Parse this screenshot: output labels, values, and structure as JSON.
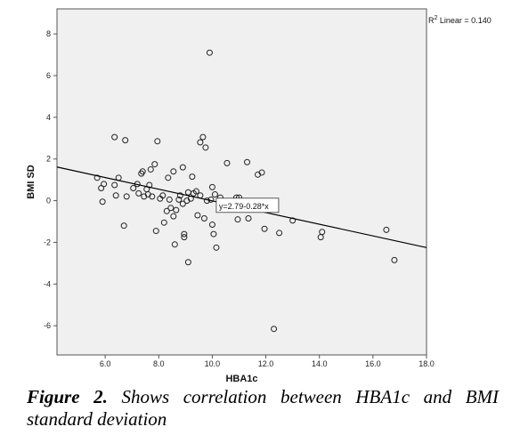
{
  "chart_data": {
    "type": "scatter",
    "xlabel": "HBA1c",
    "ylabel": "BMI SD",
    "xlim": [
      4.2,
      18.0
    ],
    "ylim": [
      -7.4,
      9.2
    ],
    "x_ticks": [
      "6.0",
      "8.0",
      "10.0",
      "12.0",
      "14.0",
      "16.0",
      "18.0"
    ],
    "y_ticks": [
      "8",
      "6",
      "4",
      "2",
      "0",
      "-2",
      "-4",
      "-6"
    ],
    "grid": false,
    "fit_line": {
      "intercept": 2.79,
      "slope": -0.28,
      "label": "y=2.79-0.28*x"
    },
    "r2_label": "Linear = 0.140",
    "points": [
      [
        5.7,
        1.1
      ],
      [
        5.85,
        0.6
      ],
      [
        5.95,
        0.8
      ],
      [
        5.9,
        -0.05
      ],
      [
        6.35,
        3.05
      ],
      [
        6.35,
        0.75
      ],
      [
        6.4,
        0.25
      ],
      [
        6.5,
        1.1
      ],
      [
        6.75,
        2.9
      ],
      [
        6.8,
        0.2
      ],
      [
        6.7,
        -1.2
      ],
      [
        7.05,
        0.6
      ],
      [
        7.2,
        0.8
      ],
      [
        7.25,
        0.35
      ],
      [
        7.35,
        1.3
      ],
      [
        7.4,
        1.4
      ],
      [
        7.45,
        0.2
      ],
      [
        7.55,
        0.55
      ],
      [
        7.65,
        0.75
      ],
      [
        7.6,
        0.3
      ],
      [
        7.7,
        1.5
      ],
      [
        7.75,
        0.2
      ],
      [
        7.85,
        1.75
      ],
      [
        7.9,
        -1.45
      ],
      [
        7.95,
        2.85
      ],
      [
        8.05,
        0.1
      ],
      [
        8.15,
        0.25
      ],
      [
        8.2,
        -1.05
      ],
      [
        8.3,
        -0.5
      ],
      [
        8.35,
        1.1
      ],
      [
        8.4,
        0.05
      ],
      [
        8.45,
        -0.35
      ],
      [
        8.55,
        -0.75
      ],
      [
        8.55,
        1.4
      ],
      [
        8.6,
        -2.1
      ],
      [
        8.65,
        -0.45
      ],
      [
        8.75,
        0.05
      ],
      [
        8.8,
        0.25
      ],
      [
        8.9,
        1.6
      ],
      [
        8.95,
        -1.6
      ],
      [
        8.95,
        -1.75
      ],
      [
        8.9,
        -0.15
      ],
      [
        9.05,
        0.0
      ],
      [
        9.1,
        0.4
      ],
      [
        9.1,
        -2.95
      ],
      [
        9.2,
        0.1
      ],
      [
        9.25,
        1.15
      ],
      [
        9.3,
        0.35
      ],
      [
        9.4,
        0.45
      ],
      [
        9.45,
        -0.7
      ],
      [
        9.55,
        0.25
      ],
      [
        9.55,
        2.8
      ],
      [
        9.65,
        3.05
      ],
      [
        9.7,
        -0.85
      ],
      [
        9.75,
        2.55
      ],
      [
        9.8,
        0.0
      ],
      [
        9.9,
        7.1
      ],
      [
        9.95,
        0.05
      ],
      [
        10.0,
        0.65
      ],
      [
        10.0,
        -1.15
      ],
      [
        10.05,
        -1.6
      ],
      [
        10.1,
        0.3
      ],
      [
        10.15,
        -2.25
      ],
      [
        10.3,
        0.15
      ],
      [
        10.55,
        1.8
      ],
      [
        10.9,
        0.15
      ],
      [
        10.95,
        -0.9
      ],
      [
        11.0,
        0.15
      ],
      [
        11.3,
        1.85
      ],
      [
        11.35,
        -0.85
      ],
      [
        11.7,
        1.25
      ],
      [
        11.85,
        1.35
      ],
      [
        11.95,
        -1.35
      ],
      [
        12.3,
        -6.15
      ],
      [
        12.5,
        -1.55
      ],
      [
        13.0,
        -0.95
      ],
      [
        14.05,
        -1.75
      ],
      [
        14.1,
        -1.5
      ],
      [
        16.5,
        -1.4
      ],
      [
        16.8,
        -2.85
      ]
    ]
  },
  "caption": {
    "label": "Figure 2.",
    "text": " Shows correlation between HBA1c and BMI standard deviation"
  }
}
